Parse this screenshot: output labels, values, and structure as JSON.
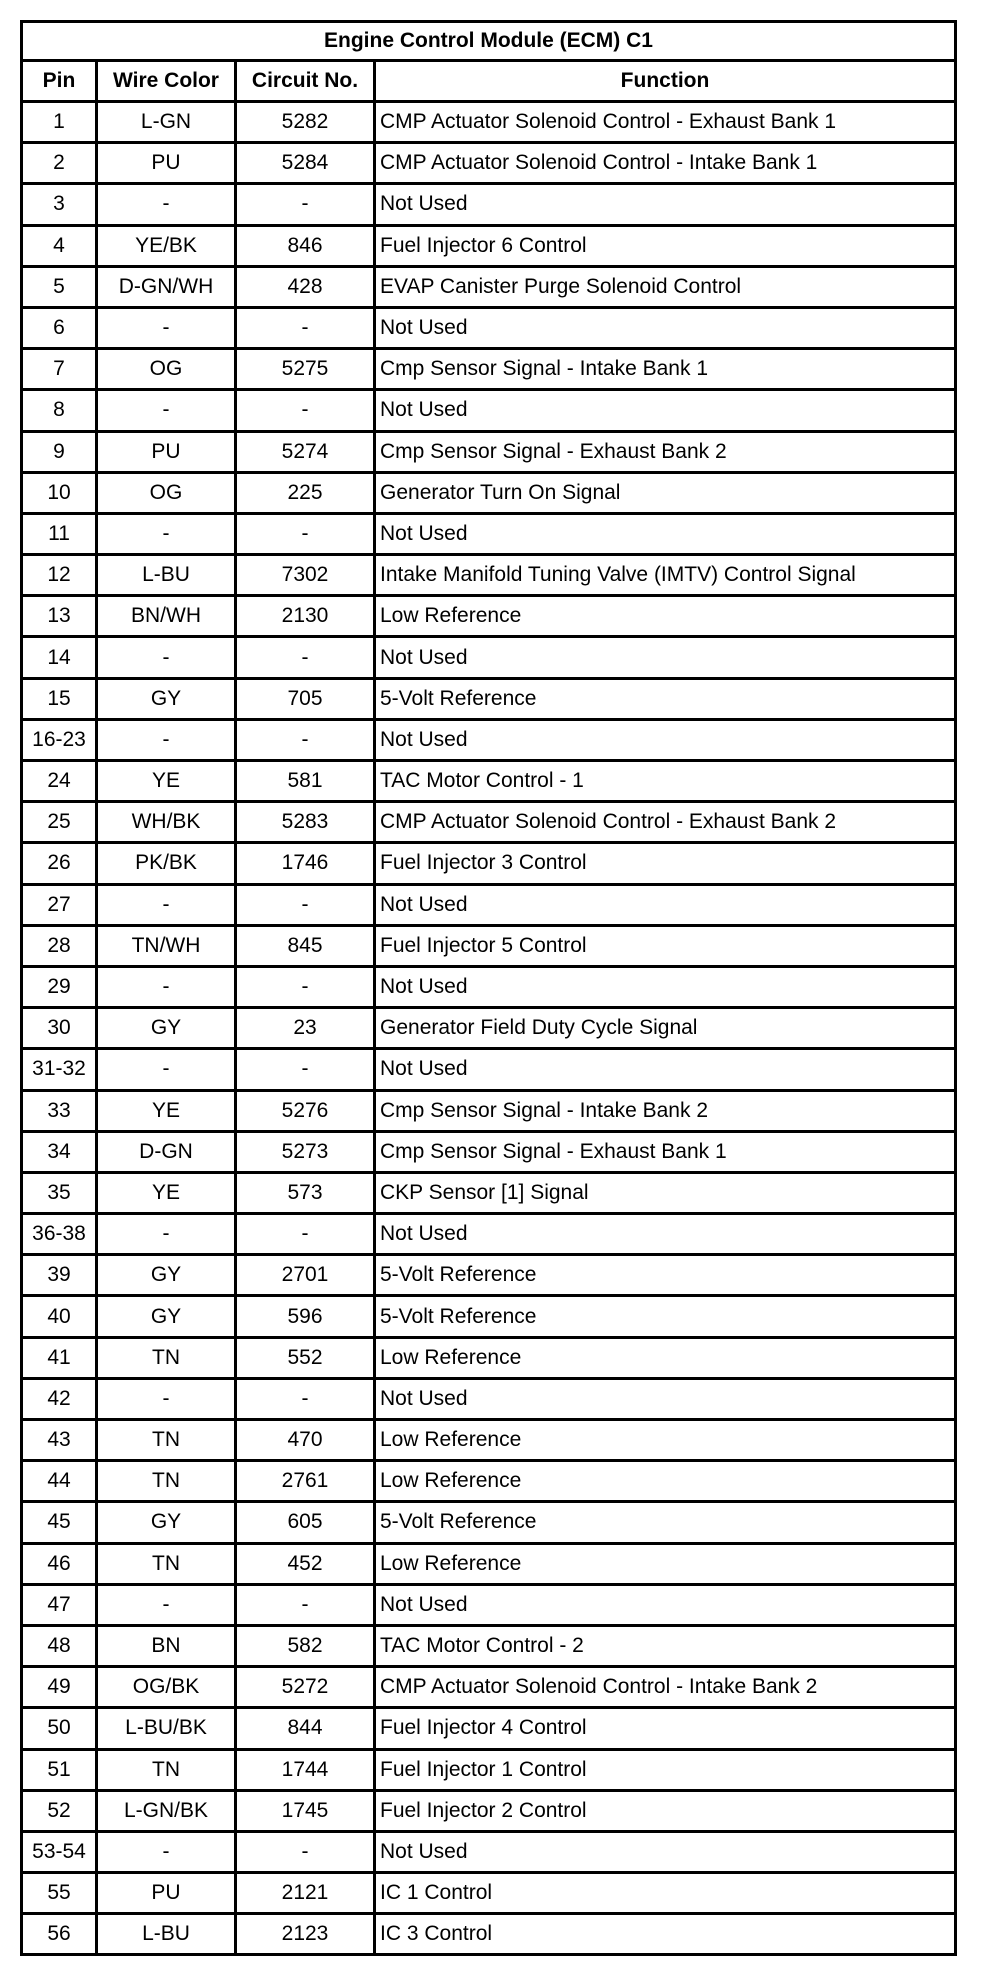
{
  "title": "Engine Control Module (ECM) C1",
  "headers": {
    "pin": "Pin",
    "wire_color": "Wire Color",
    "circuit": "Circuit No.",
    "function": "Function"
  },
  "rows": [
    [
      "1",
      "L-GN",
      "5282",
      "CMP Actuator Solenoid Control - Exhaust Bank 1"
    ],
    [
      "2",
      "PU",
      "5284",
      "CMP Actuator Solenoid Control - Intake Bank 1"
    ],
    [
      "3",
      "-",
      "-",
      "Not Used"
    ],
    [
      "4",
      "YE/BK",
      "846",
      "Fuel Injector 6 Control"
    ],
    [
      "5",
      "D-GN/WH",
      "428",
      "EVAP Canister Purge Solenoid Control"
    ],
    [
      "6",
      "-",
      "-",
      "Not Used"
    ],
    [
      "7",
      "OG",
      "5275",
      "Cmp Sensor Signal - Intake Bank 1"
    ],
    [
      "8",
      "-",
      "-",
      "Not Used"
    ],
    [
      "9",
      "PU",
      "5274",
      "Cmp Sensor Signal - Exhaust Bank 2"
    ],
    [
      "10",
      "OG",
      "225",
      "Generator Turn On Signal"
    ],
    [
      "11",
      "-",
      "-",
      "Not Used"
    ],
    [
      "12",
      "L-BU",
      "7302",
      "Intake Manifold Tuning Valve (IMTV) Control Signal"
    ],
    [
      "13",
      "BN/WH",
      "2130",
      "Low Reference"
    ],
    [
      "14",
      "-",
      "-",
      "Not Used"
    ],
    [
      "15",
      "GY",
      "705",
      "5-Volt Reference"
    ],
    [
      "16-23",
      "-",
      "-",
      "Not Used"
    ],
    [
      "24",
      "YE",
      "581",
      "TAC Motor Control - 1"
    ],
    [
      "25",
      "WH/BK",
      "5283",
      "CMP Actuator Solenoid Control - Exhaust Bank 2"
    ],
    [
      "26",
      "PK/BK",
      "1746",
      "Fuel Injector 3 Control"
    ],
    [
      "27",
      "-",
      "-",
      "Not Used"
    ],
    [
      "28",
      "TN/WH",
      "845",
      "Fuel Injector 5 Control"
    ],
    [
      "29",
      "-",
      "-",
      "Not Used"
    ],
    [
      "30",
      "GY",
      "23",
      "Generator Field Duty Cycle Signal"
    ],
    [
      "31-32",
      "-",
      "-",
      "Not Used"
    ],
    [
      "33",
      "YE",
      "5276",
      "Cmp Sensor Signal - Intake Bank 2"
    ],
    [
      "34",
      "D-GN",
      "5273",
      "Cmp Sensor Signal - Exhaust Bank 1"
    ],
    [
      "35",
      "YE",
      "573",
      "CKP Sensor [1] Signal"
    ],
    [
      "36-38",
      "-",
      "-",
      "Not Used"
    ],
    [
      "39",
      "GY",
      "2701",
      "5-Volt Reference"
    ],
    [
      "40",
      "GY",
      "596",
      "5-Volt Reference"
    ],
    [
      "41",
      "TN",
      "552",
      "Low Reference"
    ],
    [
      "42",
      "-",
      "-",
      "Not Used"
    ],
    [
      "43",
      "TN",
      "470",
      "Low Reference"
    ],
    [
      "44",
      "TN",
      "2761",
      "Low Reference"
    ],
    [
      "45",
      "GY",
      "605",
      "5-Volt Reference"
    ],
    [
      "46",
      "TN",
      "452",
      "Low Reference"
    ],
    [
      "47",
      "-",
      "-",
      "Not Used"
    ],
    [
      "48",
      "BN",
      "582",
      "TAC Motor Control - 2"
    ],
    [
      "49",
      "OG/BK",
      "5272",
      "CMP Actuator Solenoid Control - Intake Bank 2"
    ],
    [
      "50",
      "L-BU/BK",
      "844",
      "Fuel Injector 4 Control"
    ],
    [
      "51",
      "TN",
      "1744",
      "Fuel Injector 1 Control"
    ],
    [
      "52",
      "L-GN/BK",
      "1745",
      "Fuel Injector 2 Control"
    ],
    [
      "53-54",
      "-",
      "-",
      "Not Used"
    ],
    [
      "55",
      "PU",
      "2121",
      "IC 1 Control"
    ],
    [
      "56",
      "L-BU",
      "2123",
      "IC 3 Control"
    ]
  ]
}
